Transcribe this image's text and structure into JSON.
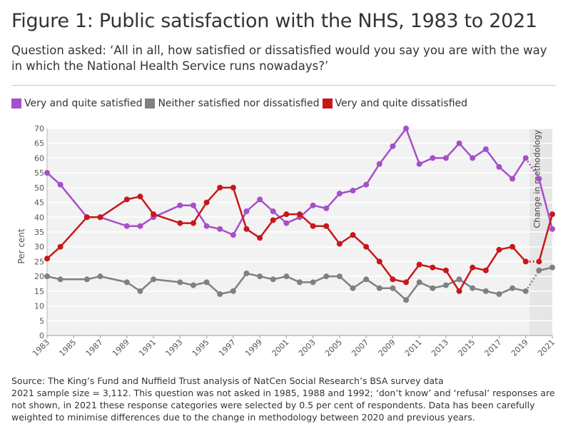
{
  "title": "Figure 1: Public satisfaction with the NHS, 1983 to 2021",
  "subtitle": "Question asked: ‘All in all, how satisfied or dissatisfied would you say you are with the way in which the National Health Service runs nowadays?’",
  "source_line": "Source: The King’s Fund and Nuffield Trust analysis of NatCen Social Research’s BSA survey data",
  "note": "2021 sample size = 3,112. This question was not asked in 1985, 1988 and 1992; ‘don’t know’ and ‘refusal’ responses are not shown, in 2021 these response categories were selected by 0.5 per cent of respondents. Data has been carefully weighted to minimise differences due to the change in methodology between 2020 and previous years.",
  "colors": {
    "satisfied": "#a64fc9",
    "neither": "#808080",
    "dissatisfied": "#c8171b",
    "shade": "#e6e6e6",
    "grid": "#ffffff",
    "plot_bg": "#f2f2f2"
  },
  "chart_data": {
    "type": "line",
    "title": "Public satisfaction with the NHS, 1983 to 2021",
    "xlabel": "",
    "ylabel": "Per cent",
    "ylim": [
      0,
      70
    ],
    "yticks": [
      0,
      5,
      10,
      15,
      20,
      25,
      30,
      35,
      40,
      45,
      50,
      55,
      60,
      65,
      70
    ],
    "xlim": [
      1983,
      2021
    ],
    "xticks": [
      "1983",
      "1985",
      "1987",
      "1989",
      "1991",
      "1993",
      "1995",
      "1997",
      "1999",
      "2001",
      "2003",
      "2005",
      "2007",
      "2009",
      "2011",
      "2013",
      "2015",
      "2017",
      "2019",
      "2021"
    ],
    "annotation": {
      "label": "Change in methodology",
      "from": 2019.3,
      "to": 2021.3
    },
    "series": [
      {
        "name": "Very and quite satisfied",
        "key": "satisfied",
        "points": [
          [
            1983,
            55
          ],
          [
            1984,
            51
          ],
          [
            1986,
            40
          ],
          [
            1987,
            40
          ],
          [
            1989,
            37
          ],
          [
            1990,
            37
          ],
          [
            1991,
            40
          ],
          [
            1993,
            44
          ],
          [
            1994,
            44
          ],
          [
            1995,
            37
          ],
          [
            1996,
            36
          ],
          [
            1997,
            34
          ],
          [
            1998,
            42
          ],
          [
            1999,
            46
          ],
          [
            2000,
            42
          ],
          [
            2001,
            38
          ],
          [
            2002,
            40
          ],
          [
            2003,
            44
          ],
          [
            2004,
            43
          ],
          [
            2005,
            48
          ],
          [
            2006,
            49
          ],
          [
            2007,
            51
          ],
          [
            2008,
            58
          ],
          [
            2009,
            64
          ],
          [
            2010,
            70
          ],
          [
            2011,
            58
          ],
          [
            2012,
            60
          ],
          [
            2013,
            60
          ],
          [
            2014,
            65
          ],
          [
            2015,
            60
          ],
          [
            2016,
            63
          ],
          [
            2017,
            57
          ],
          [
            2018,
            53
          ],
          [
            2019,
            60
          ],
          [
            2020,
            53
          ],
          [
            2021,
            36
          ]
        ],
        "dotted_from": 2019
      },
      {
        "name": "Neither satisfied nor dissatisfied",
        "key": "neither",
        "points": [
          [
            1983,
            20
          ],
          [
            1984,
            19
          ],
          [
            1986,
            19
          ],
          [
            1987,
            20
          ],
          [
            1989,
            18
          ],
          [
            1990,
            15
          ],
          [
            1991,
            19
          ],
          [
            1993,
            18
          ],
          [
            1994,
            17
          ],
          [
            1995,
            18
          ],
          [
            1996,
            14
          ],
          [
            1997,
            15
          ],
          [
            1998,
            21
          ],
          [
            1999,
            20
          ],
          [
            2000,
            19
          ],
          [
            2001,
            20
          ],
          [
            2002,
            18
          ],
          [
            2003,
            18
          ],
          [
            2004,
            20
          ],
          [
            2005,
            20
          ],
          [
            2006,
            16
          ],
          [
            2007,
            19
          ],
          [
            2008,
            16
          ],
          [
            2009,
            16
          ],
          [
            2010,
            12
          ],
          [
            2011,
            18
          ],
          [
            2012,
            16
          ],
          [
            2013,
            17
          ],
          [
            2014,
            19
          ],
          [
            2015,
            16
          ],
          [
            2016,
            15
          ],
          [
            2017,
            14
          ],
          [
            2018,
            16
          ],
          [
            2019,
            15
          ],
          [
            2020,
            22
          ],
          [
            2021,
            23
          ]
        ],
        "dotted_from": 2019
      },
      {
        "name": "Very and quite dissatisfied",
        "key": "dissatisfied",
        "points": [
          [
            1983,
            26
          ],
          [
            1984,
            30
          ],
          [
            1986,
            40
          ],
          [
            1987,
            40
          ],
          [
            1989,
            46
          ],
          [
            1990,
            47
          ],
          [
            1991,
            41
          ],
          [
            1993,
            38
          ],
          [
            1994,
            38
          ],
          [
            1995,
            45
          ],
          [
            1996,
            50
          ],
          [
            1997,
            50
          ],
          [
            1998,
            36
          ],
          [
            1999,
            33
          ],
          [
            2000,
            39
          ],
          [
            2001,
            41
          ],
          [
            2002,
            41
          ],
          [
            2003,
            37
          ],
          [
            2004,
            37
          ],
          [
            2005,
            31
          ],
          [
            2006,
            34
          ],
          [
            2007,
            30
          ],
          [
            2008,
            25
          ],
          [
            2009,
            19
          ],
          [
            2010,
            18
          ],
          [
            2011,
            24
          ],
          [
            2012,
            23
          ],
          [
            2013,
            22
          ],
          [
            2014,
            15
          ],
          [
            2015,
            23
          ],
          [
            2016,
            22
          ],
          [
            2017,
            29
          ],
          [
            2018,
            30
          ],
          [
            2019,
            25
          ],
          [
            2020,
            25
          ],
          [
            2021,
            41
          ]
        ],
        "dotted_from": 2019
      }
    ]
  }
}
